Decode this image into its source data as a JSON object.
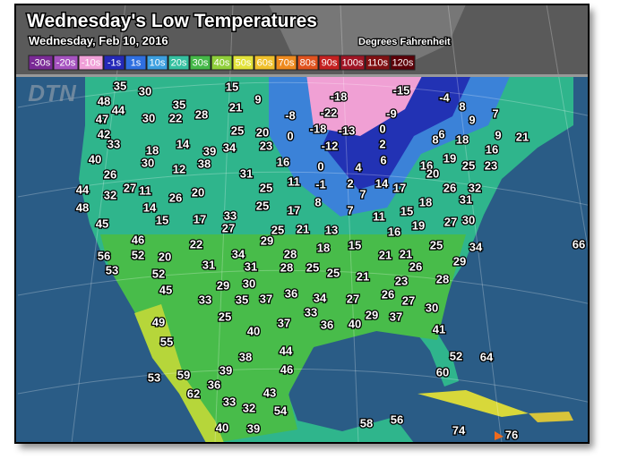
{
  "header": {
    "title": "Wednesday's Low Temperatures",
    "date": "Wednesday, Feb 10, 2016",
    "units": "Degrees Fahrenheit"
  },
  "legend": [
    {
      "label": "-30s",
      "color": "#7a2a96"
    },
    {
      "label": "-20s",
      "color": "#a653c0"
    },
    {
      "label": "-10s",
      "color": "#f0a0d8"
    },
    {
      "label": "-1s",
      "color": "#2428b8"
    },
    {
      "label": "1s",
      "color": "#2f6fe0"
    },
    {
      "label": "10s",
      "color": "#3c9fe0"
    },
    {
      "label": "20s",
      "color": "#35c0a0"
    },
    {
      "label": "30s",
      "color": "#45b848"
    },
    {
      "label": "40s",
      "color": "#8fcf3a"
    },
    {
      "label": "50s",
      "color": "#e2e23a"
    },
    {
      "label": "60s",
      "color": "#f0c02c"
    },
    {
      "label": "70s",
      "color": "#ee8a1e"
    },
    {
      "label": "80s",
      "color": "#e0521e"
    },
    {
      "label": "90s",
      "color": "#c42020"
    },
    {
      "label": "100s",
      "color": "#a01424"
    },
    {
      "label": "110s",
      "color": "#801012"
    },
    {
      "label": "120s",
      "color": "#5c0008"
    }
  ],
  "watermark": "DTN",
  "temperatures": [
    35,
    30,
    15,
    9,
    -18,
    -15,
    -4,
    48,
    44,
    35,
    28,
    21,
    8,
    7,
    47,
    30,
    22,
    -8,
    -22,
    -9,
    9,
    42,
    25,
    20,
    0,
    -18,
    -13,
    0,
    6,
    8,
    18,
    9,
    21,
    33,
    18,
    14,
    39,
    34,
    23,
    -12,
    2,
    16,
    40,
    30,
    38,
    16,
    6,
    19,
    25,
    23,
    26,
    12,
    31,
    0,
    4,
    16,
    20,
    44,
    32,
    27,
    11,
    20,
    25,
    11,
    -1,
    2,
    14,
    17,
    26,
    32,
    48,
    26,
    14,
    8,
    7,
    18,
    31,
    25,
    17,
    7,
    11,
    15,
    30,
    45,
    15,
    17,
    33,
    27,
    25,
    21,
    13,
    16,
    19,
    27,
    46,
    22,
    29,
    18,
    15,
    21,
    21,
    25,
    34,
    66,
    56,
    52,
    20,
    34,
    28,
    29,
    53,
    52,
    31,
    31,
    28,
    25,
    25,
    21,
    26,
    23,
    28,
    45,
    29,
    30,
    36,
    34,
    27,
    26,
    27,
    30,
    33,
    35,
    37,
    33,
    29,
    37,
    25,
    49,
    37,
    36,
    40,
    41,
    40,
    55,
    44,
    38,
    52,
    64,
    39,
    46,
    60,
    53,
    59,
    36,
    62,
    43,
    33,
    32,
    54,
    58,
    56,
    40,
    39,
    74,
    76
  ]
}
